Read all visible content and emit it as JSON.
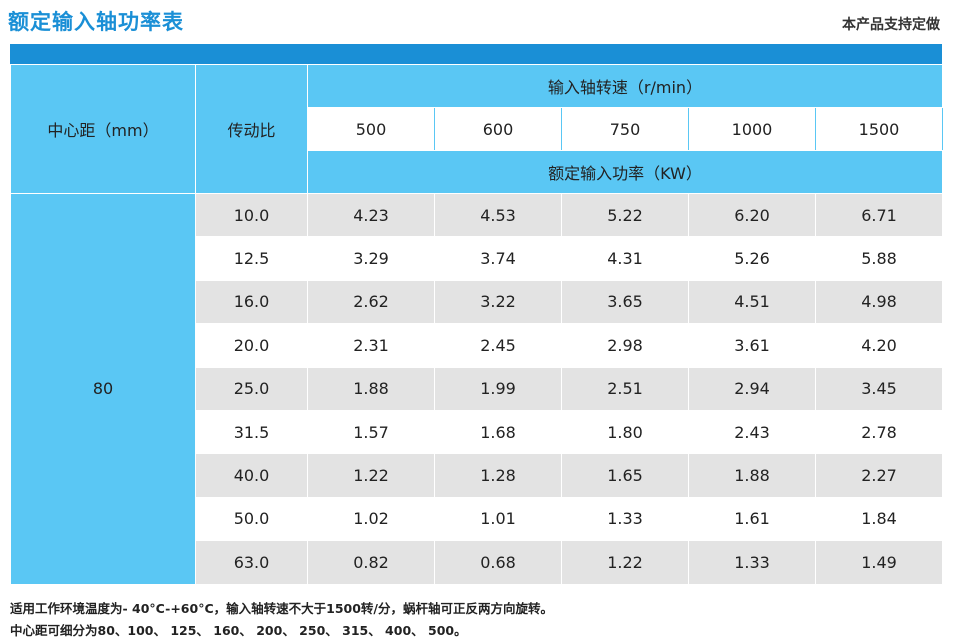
{
  "header": {
    "title": "额定输入轴功率表",
    "subtitle": "本产品支持定做"
  },
  "table": {
    "col_center": "中心距（mm）",
    "col_ratio": "传动比",
    "speed_header": "输入轴转速（r/min）",
    "speeds": [
      "500",
      "600",
      "750",
      "1000",
      "1500"
    ],
    "power_header": "额定输入功率（KW）",
    "center_value": "80",
    "rows": [
      {
        "ratio": "10.0",
        "values": [
          "4.23",
          "4.53",
          "5.22",
          "6.20",
          "6.71"
        ]
      },
      {
        "ratio": "12.5",
        "values": [
          "3.29",
          "3.74",
          "4.31",
          "5.26",
          "5.88"
        ]
      },
      {
        "ratio": "16.0",
        "values": [
          "2.62",
          "3.22",
          "3.65",
          "4.51",
          "4.98"
        ]
      },
      {
        "ratio": "20.0",
        "values": [
          "2.31",
          "2.45",
          "2.98",
          "3.61",
          "4.20"
        ]
      },
      {
        "ratio": "25.0",
        "values": [
          "1.88",
          "1.99",
          "2.51",
          "2.94",
          "3.45"
        ]
      },
      {
        "ratio": "31.5",
        "values": [
          "1.57",
          "1.68",
          "1.80",
          "2.43",
          "2.78"
        ]
      },
      {
        "ratio": "40.0",
        "values": [
          "1.22",
          "1.28",
          "1.65",
          "1.88",
          "2.27"
        ]
      },
      {
        "ratio": "50.0",
        "values": [
          "1.02",
          "1.01",
          "1.33",
          "1.61",
          "1.84"
        ]
      },
      {
        "ratio": "63.0",
        "values": [
          "0.82",
          "0.68",
          "1.22",
          "1.33",
          "1.49"
        ]
      }
    ]
  },
  "notes": [
    "适用工作环境温度为- 40°C-+60°C，输入轴转速不大于1500转/分，蜗杆轴可正反两方向旋转。",
    "中心距可细分为80、100、 125、 160、 200、 250、 315、 400、 500。"
  ],
  "colors": {
    "accent": "#1a8fd6",
    "header_cell": "#5ac7f4",
    "zebra": "#e3e3e3"
  }
}
